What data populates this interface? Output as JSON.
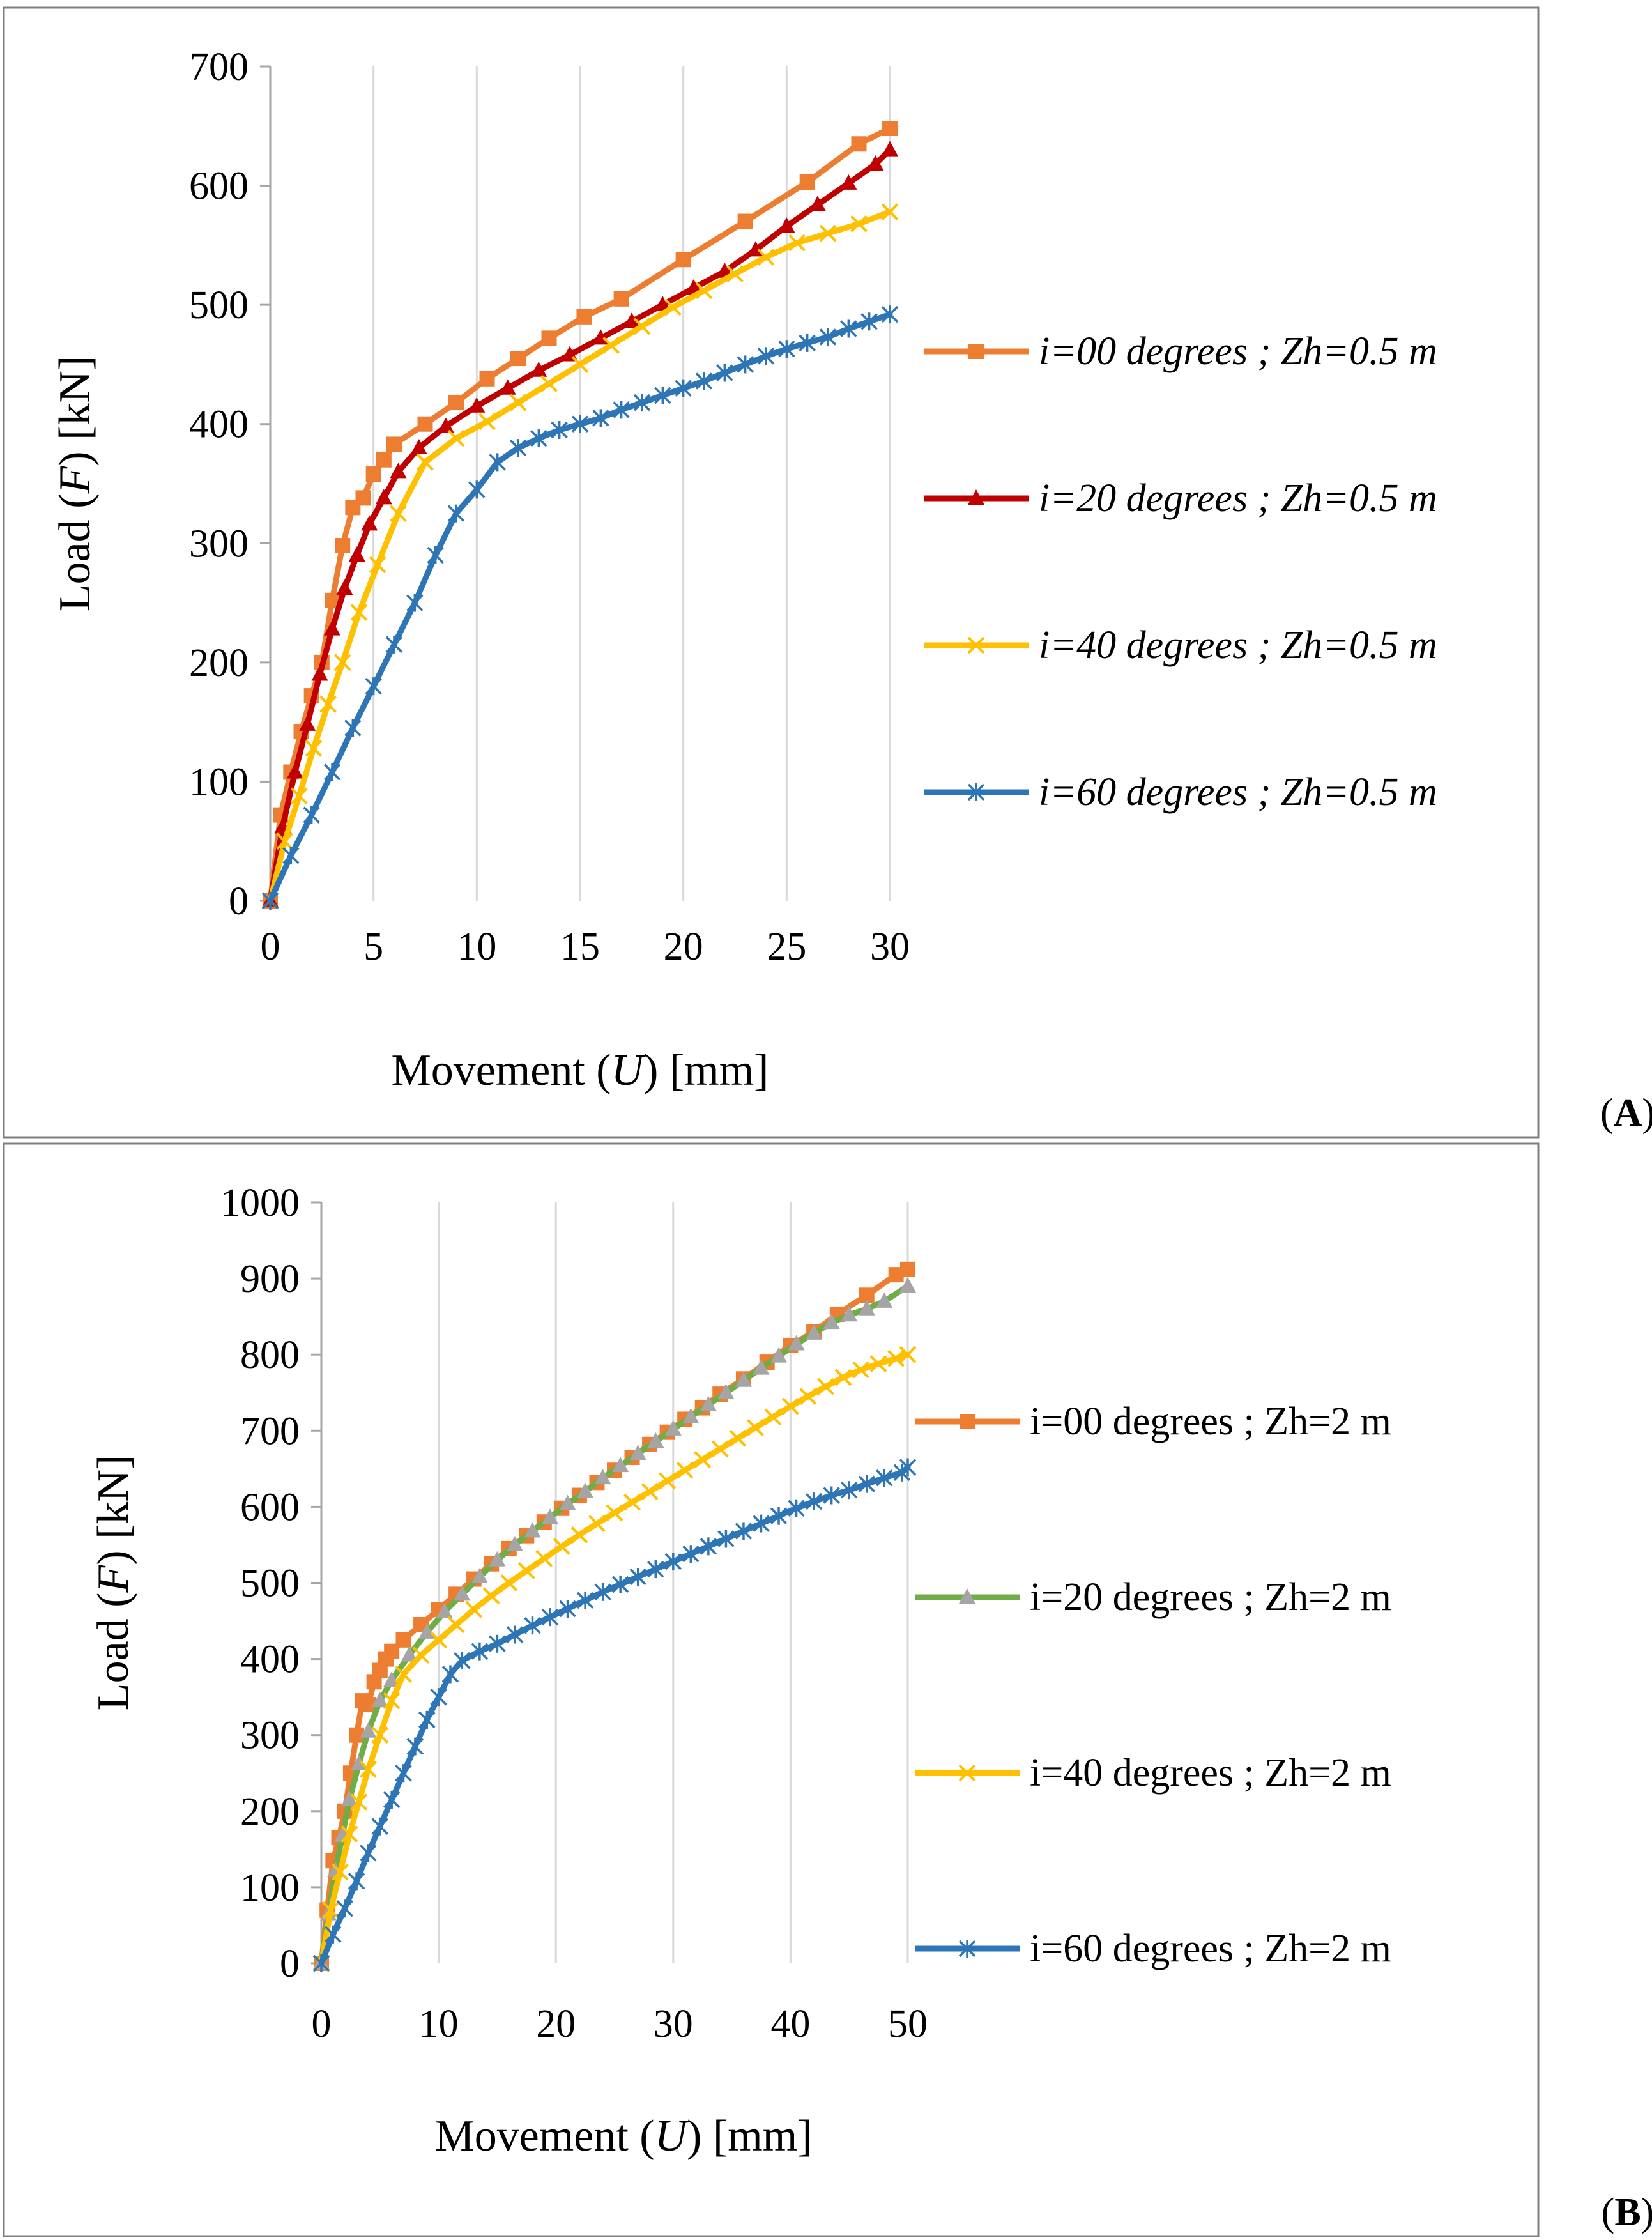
{
  "figure": {
    "panels": [
      "A",
      "B"
    ]
  },
  "chart_data": [
    {
      "panel_label": "A",
      "type": "line",
      "title": "",
      "xlabel": {
        "prefix": "Movement (",
        "var": "U",
        "suffix": ") [mm]"
      },
      "ylabel": {
        "prefix": "Load (",
        "var": "F",
        "suffix": ") [kN]"
      },
      "xlim": [
        0,
        30
      ],
      "ylim": [
        0,
        700
      ],
      "xticks": [
        0,
        5,
        10,
        15,
        20,
        25,
        30
      ],
      "yticks": [
        0,
        100,
        200,
        300,
        400,
        500,
        600,
        700
      ],
      "grid": "vertical",
      "legend_position": "right",
      "legend_italic": true,
      "series": [
        {
          "name": "i=00 degrees ; Zh=0.5 m",
          "color": "#ED7D31",
          "marker": "square",
          "x": [
            0,
            0.5,
            1,
            1.5,
            2,
            2.5,
            3,
            3.5,
            4,
            4.5,
            5,
            5.5,
            6,
            7.5,
            9,
            10.5,
            12,
            13.5,
            15.2,
            17,
            20,
            23,
            26,
            28.5,
            30
          ],
          "y": [
            0,
            72,
            108,
            142,
            172,
            200,
            252,
            298,
            330,
            338,
            358,
            370,
            383,
            400,
            418,
            438,
            455,
            472,
            490,
            505,
            538,
            570,
            603,
            635,
            648
          ]
        },
        {
          "name": "i=20 degrees ; Zh=0.5 m",
          "color": "#C00000",
          "marker": "triangle",
          "x": [
            0,
            0.6,
            1.2,
            1.8,
            2.4,
            3.0,
            3.6,
            4.2,
            4.8,
            5.5,
            6.2,
            7.2,
            8.5,
            10.0,
            11.5,
            13,
            14.5,
            16,
            17.5,
            19,
            20.5,
            22,
            23.5,
            25,
            26.5,
            28,
            29.3,
            30
          ],
          "y": [
            0,
            62,
            108,
            148,
            190,
            228,
            262,
            290,
            316,
            338,
            360,
            380,
            398,
            415,
            430,
            445,
            458,
            472,
            486,
            500,
            514,
            528,
            546,
            566,
            584,
            602,
            618,
            630
          ]
        },
        {
          "name": "i=40 degrees ; Zh=0.5 m",
          "color": "#FFC000",
          "marker": "x",
          "x": [
            0,
            0.7,
            1.4,
            2.1,
            2.8,
            3.5,
            4.3,
            5.2,
            6.2,
            7.5,
            9,
            10.5,
            12,
            13.5,
            15,
            16.5,
            18,
            19.5,
            21,
            22.5,
            24,
            25.5,
            27,
            28.5,
            30
          ],
          "y": [
            0,
            50,
            88,
            128,
            165,
            200,
            242,
            282,
            325,
            368,
            388,
            402,
            418,
            434,
            450,
            466,
            482,
            498,
            512,
            526,
            540,
            552,
            560,
            568,
            578
          ]
        },
        {
          "name": "i=60 degrees ; Zh=0.5 m",
          "color": "#2E75B6",
          "marker": "star",
          "x": [
            0,
            1,
            2,
            3,
            4,
            5,
            6,
            7,
            8,
            9,
            10,
            11,
            12,
            13,
            14,
            15,
            16,
            17,
            18,
            19,
            20,
            21,
            22,
            23,
            24,
            25,
            26,
            27,
            28,
            29,
            30
          ],
          "y": [
            0,
            38,
            72,
            108,
            145,
            180,
            215,
            250,
            290,
            325,
            345,
            368,
            380,
            388,
            395,
            400,
            405,
            412,
            418,
            424,
            430,
            436,
            443,
            450,
            457,
            463,
            468,
            473,
            480,
            486,
            492
          ]
        }
      ]
    },
    {
      "panel_label": "B",
      "type": "line",
      "title": "",
      "xlabel": {
        "prefix": "Movement (",
        "var": "U",
        "suffix": ") [mm]"
      },
      "ylabel": {
        "prefix": "Load (",
        "var": "F",
        "suffix": ") [kN]"
      },
      "xlim": [
        0,
        50
      ],
      "ylim": [
        0,
        1000
      ],
      "xticks": [
        0,
        10,
        20,
        30,
        40,
        50
      ],
      "yticks": [
        0,
        100,
        200,
        300,
        400,
        500,
        600,
        700,
        800,
        900,
        1000
      ],
      "grid": "vertical",
      "legend_position": "right",
      "legend_italic": false,
      "series": [
        {
          "name": "i=00 degrees ; Zh=2 m",
          "color": "#ED7D31",
          "marker": "square",
          "x": [
            0,
            0.5,
            1,
            1.5,
            2,
            2.5,
            3,
            3.5,
            4,
            4.5,
            5,
            5.5,
            6,
            7,
            8.5,
            10,
            11.5,
            13,
            14.5,
            16,
            17.5,
            19,
            20.5,
            22,
            23.5,
            25,
            26.5,
            28,
            29.5,
            31,
            32.5,
            34,
            36,
            38,
            40,
            42,
            44,
            46.5,
            49,
            50
          ],
          "y": [
            0,
            70,
            135,
            165,
            200,
            250,
            300,
            345,
            340,
            370,
            385,
            400,
            410,
            425,
            445,
            465,
            485,
            505,
            525,
            545,
            562,
            580,
            598,
            615,
            632,
            648,
            665,
            682,
            698,
            715,
            730,
            748,
            768,
            790,
            812,
            830,
            853,
            878,
            905,
            912
          ]
        },
        {
          "name": "i=20 degrees ; Zh=2 m",
          "color": "#70AD47",
          "marker": "triangle",
          "marker_color": "#A5A5A5",
          "x": [
            0,
            0.6,
            1.2,
            1.8,
            2.4,
            3.2,
            4,
            5,
            6,
            7.5,
            9,
            10.5,
            12,
            13.5,
            15,
            16.5,
            18,
            19.5,
            21,
            22.5,
            24,
            25.5,
            27,
            28.5,
            30,
            31.5,
            33,
            34.5,
            36,
            37.5,
            39,
            40.5,
            42,
            43.5,
            45,
            46.5,
            48,
            50
          ],
          "y": [
            0,
            65,
            122,
            168,
            215,
            262,
            305,
            345,
            372,
            405,
            435,
            462,
            485,
            508,
            530,
            550,
            568,
            586,
            604,
            620,
            638,
            654,
            670,
            686,
            702,
            718,
            734,
            750,
            766,
            782,
            798,
            814,
            828,
            842,
            852,
            860,
            870,
            890
          ]
        },
        {
          "name": "i=40 degrees ; Zh=2 m",
          "color": "#FFC000",
          "marker": "x",
          "x": [
            0,
            0.8,
            1.6,
            2.4,
            3.2,
            4,
            5,
            6,
            7,
            8.5,
            10,
            11.5,
            13,
            14.5,
            16,
            17.5,
            19,
            20.5,
            22,
            23.5,
            25,
            26.5,
            28,
            29.5,
            31,
            32.5,
            34,
            35.5,
            37,
            38.5,
            40,
            41.5,
            43,
            44.5,
            46,
            47.5,
            49,
            50
          ],
          "y": [
            0,
            70,
            120,
            170,
            212,
            255,
            300,
            345,
            380,
            405,
            425,
            445,
            465,
            483,
            500,
            516,
            532,
            548,
            563,
            578,
            592,
            606,
            620,
            634,
            648,
            662,
            676,
            690,
            704,
            718,
            732,
            745,
            758,
            770,
            780,
            788,
            795,
            800
          ]
        },
        {
          "name": "i=60 degrees ; Zh=2 m",
          "color": "#2E75B6",
          "marker": "star",
          "x": [
            0,
            1,
            2,
            3,
            4,
            5,
            6,
            7,
            8,
            9,
            10,
            11,
            12,
            13.5,
            15,
            16.5,
            18,
            19.5,
            21,
            22.5,
            24,
            25.5,
            27,
            28.5,
            30,
            31.5,
            33,
            34.5,
            36,
            37.5,
            39,
            40.5,
            42,
            43.5,
            45,
            46.5,
            48,
            49.5,
            50
          ],
          "y": [
            0,
            38,
            72,
            108,
            145,
            180,
            215,
            250,
            285,
            320,
            350,
            380,
            398,
            410,
            420,
            432,
            444,
            455,
            466,
            477,
            488,
            498,
            508,
            518,
            528,
            538,
            548,
            558,
            568,
            578,
            588,
            598,
            607,
            615,
            622,
            630,
            638,
            645,
            652
          ]
        }
      ]
    }
  ]
}
